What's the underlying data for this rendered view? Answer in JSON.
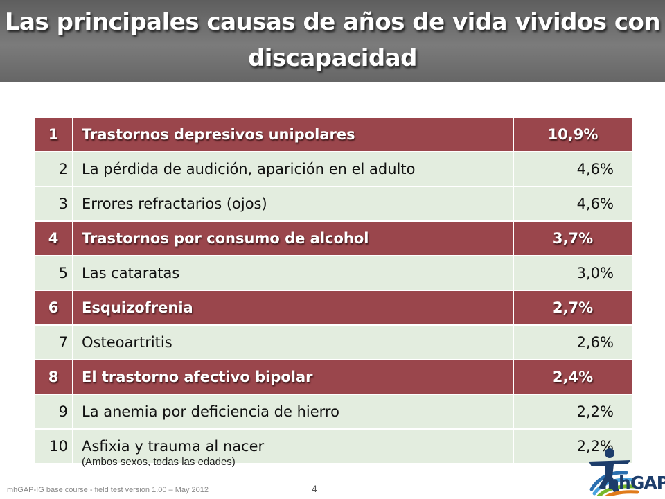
{
  "title": "Las principales causas de años de vida vividos con discapacidad",
  "rows": [
    {
      "rank": "1",
      "cause": "Trastornos depresivos unipolares",
      "pct": "10,9%",
      "highlight": true
    },
    {
      "rank": "2",
      "cause": "La pérdida de audición, aparición en el adulto",
      "pct": "4,6%",
      "highlight": false
    },
    {
      "rank": "3",
      "cause": "Errores refractarios (ojos)",
      "pct": "4,6%",
      "highlight": false
    },
    {
      "rank": "4",
      "cause": "Trastornos por consumo de alcohol",
      "pct": "3,7%",
      "highlight": true
    },
    {
      "rank": "5",
      "cause": "Las cataratas",
      "pct": "3,0%",
      "highlight": false
    },
    {
      "rank": "6",
      "cause": "Esquizofrenia",
      "pct": "2,7%",
      "highlight": true
    },
    {
      "rank": "7",
      "cause": "Osteoartritis",
      "pct": "2,6%",
      "highlight": false
    },
    {
      "rank": "8",
      "cause": "El trastorno afectivo bipolar",
      "pct": "2,4%",
      "highlight": true
    },
    {
      "rank": "9",
      "cause": "La anemia por deficiencia de hierro",
      "pct": "2,2%",
      "highlight": false
    },
    {
      "rank": "10",
      "cause": "Asfixia y trauma al nacer",
      "pct": "2,2%",
      "highlight": false
    }
  ],
  "note": "(Ambos sexos, todas las edades)",
  "footer": "mhGAP-IG base course -  field test version 1.00 – May 2012",
  "page_number": "4",
  "logo": {
    "text": "mhGAP",
    "icon": "mhgap-person-logo-icon"
  },
  "colors": {
    "highlight_row": "#9a464c",
    "normal_row": "#e3eddf",
    "title_bar": "#6e6e6e"
  }
}
